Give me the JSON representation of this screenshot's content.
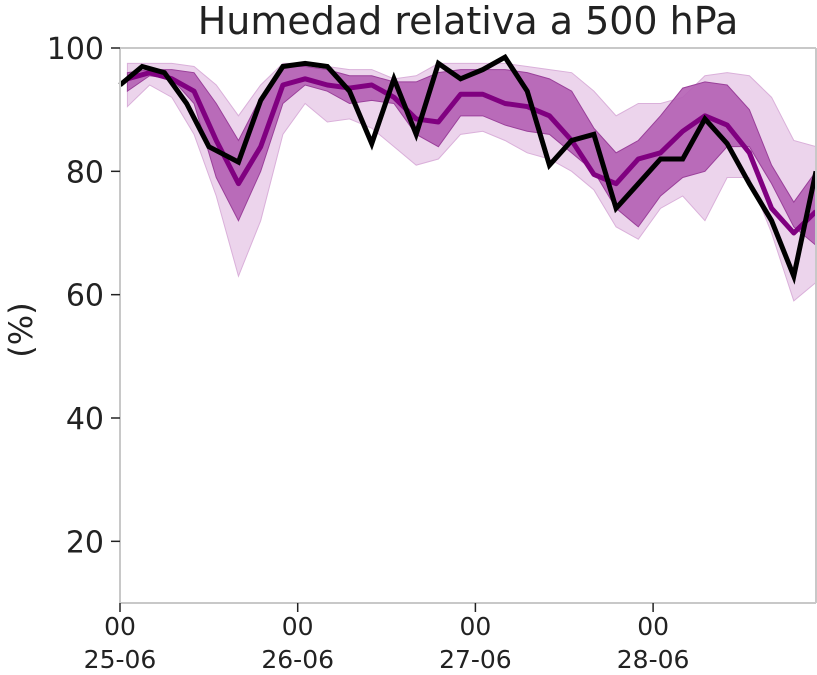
{
  "chart_data": {
    "type": "line",
    "title": "Humedad relativa a 500 hPa",
    "ylabel": "(%)",
    "xlabel": "",
    "ylim": [
      10,
      100
    ],
    "yticks": [
      20,
      40,
      60,
      80,
      100
    ],
    "xticks": [
      {
        "value": 0,
        "label_top": "00",
        "label_bottom": "25-06"
      },
      {
        "value": 24,
        "label_top": "00",
        "label_bottom": "26-06"
      },
      {
        "value": 48,
        "label_top": "00",
        "label_bottom": "27-06"
      },
      {
        "value": 72,
        "label_top": "00",
        "label_bottom": "28-06"
      }
    ],
    "xlim": [
      0,
      94
    ],
    "grid": false,
    "colors": {
      "mean": "#800080",
      "band_inner": "#b45fb4",
      "band_outer": "#e6c6e6",
      "observed": "#000000",
      "axis": "#c8c8c8"
    },
    "ensemble_x": [
      1,
      4,
      7,
      10,
      13,
      16,
      19,
      22,
      25,
      28,
      31,
      34,
      37,
      40,
      43,
      46,
      49,
      52,
      55,
      58,
      61,
      64,
      67,
      70,
      73,
      76,
      79,
      82,
      85,
      88,
      91,
      94
    ],
    "series": [
      {
        "kind": "band_outer",
        "upper": [
          97.5,
          97.5,
          97.5,
          97,
          94,
          89,
          94,
          97.5,
          97.5,
          97,
          96.5,
          96.5,
          95,
          95.5,
          97.5,
          97.5,
          97.5,
          97.5,
          97,
          96.5,
          96,
          93,
          89,
          91,
          91,
          92,
          95.5,
          96,
          95.5,
          92,
          85,
          84
        ],
        "lower": [
          90.5,
          94,
          92,
          86,
          76,
          63,
          72,
          86,
          91,
          88,
          88.5,
          87,
          84,
          81,
          82,
          86,
          86.5,
          85,
          83,
          82,
          80,
          77,
          71,
          69,
          74,
          76,
          72,
          79,
          79,
          70,
          59,
          62
        ]
      },
      {
        "kind": "band_inner",
        "upper": [
          96,
          96.5,
          96.5,
          96,
          91,
          85,
          92,
          97,
          97,
          96.5,
          95.5,
          95.5,
          94.5,
          94.5,
          96,
          96.5,
          96.5,
          96.5,
          96,
          95,
          93,
          87,
          83,
          85,
          89,
          93.5,
          94.5,
          94,
          90,
          81,
          75,
          80
        ],
        "lower": [
          93,
          95.5,
          95,
          91,
          79,
          72,
          80,
          91,
          94,
          93,
          91,
          91.5,
          91,
          86,
          84,
          89,
          89,
          87.5,
          86.5,
          86,
          83,
          80,
          74,
          71,
          76,
          79,
          80,
          84,
          84,
          78,
          71,
          68
        ]
      },
      {
        "kind": "mean",
        "y": [
          95,
          96,
          95,
          93,
          85,
          78,
          84,
          94,
          95,
          94,
          93.5,
          94,
          92,
          88.5,
          88,
          92.5,
          92.5,
          91,
          90.5,
          89,
          85,
          79.5,
          78,
          82,
          83,
          86.5,
          89,
          87.5,
          83,
          74,
          70,
          73.5
        ]
      },
      {
        "kind": "observed",
        "x": [
          0,
          3,
          6,
          9,
          12,
          16,
          19,
          22,
          25,
          28,
          31,
          34,
          37,
          40,
          43,
          46,
          49,
          52,
          55,
          58,
          61,
          64,
          67,
          70,
          73,
          76,
          79,
          82,
          85,
          88,
          91,
          94
        ],
        "y": [
          94,
          97,
          96,
          91,
          84,
          81.5,
          91.5,
          97,
          97.5,
          97,
          93,
          84.5,
          95,
          86,
          97.5,
          95,
          96.5,
          98.5,
          93,
          81,
          85,
          86,
          74,
          78,
          82,
          82,
          88.5,
          84.5,
          78,
          72,
          63,
          80
        ]
      }
    ]
  }
}
